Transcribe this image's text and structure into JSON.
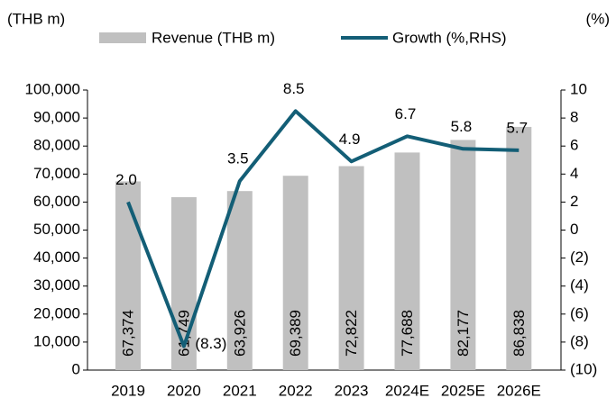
{
  "chart_data": {
    "type": "bar_line",
    "y_label": "(THB m)",
    "y2_label": "(%)",
    "categories": [
      "2019",
      "2020",
      "2021",
      "2022",
      "2023",
      "2024E",
      "2025E",
      "2026E"
    ],
    "series": [
      {
        "name": "Revenue (THB m)",
        "type": "bar",
        "color": "#c0c0c0",
        "values": [
          67374,
          61749,
          63926,
          69389,
          72822,
          77688,
          82177,
          86838
        ],
        "value_labels": [
          "67,374",
          "61,749",
          "63,926",
          "69,389",
          "72,822",
          "77,688",
          "82,177",
          "86,838"
        ]
      },
      {
        "name": "Growth (%,RHS)",
        "type": "line",
        "axis": "y2",
        "color": "#135e76",
        "values": [
          2.0,
          -8.3,
          3.5,
          8.5,
          4.9,
          6.7,
          5.8,
          5.7
        ],
        "value_labels": [
          "2.0",
          "(8.3)",
          "3.5",
          "8.5",
          "4.9",
          "6.7",
          "5.8",
          "5.7"
        ]
      }
    ],
    "ylim": [
      0,
      100000
    ],
    "yticks": [
      0,
      {
        "value": 10000,
        "label": "10,000"
      },
      {
        "value": 20000,
        "label": "20,000"
      },
      {
        "value": 30000,
        "label": "30,000"
      },
      {
        "value": 40000,
        "label": "40,000"
      },
      {
        "value": 50000,
        "label": "50,000"
      },
      {
        "value": 60000,
        "label": "60,000"
      },
      {
        "value": 70000,
        "label": "70,000"
      },
      {
        "value": 80000,
        "label": "80,000"
      },
      {
        "value": 90000,
        "label": "90,000"
      },
      {
        "value": 100000,
        "label": "100,000"
      }
    ],
    "y2lim": [
      -10,
      10
    ],
    "y2ticks": [
      {
        "value": -10,
        "label": "(10)"
      },
      {
        "value": -8,
        "label": "(8)"
      },
      {
        "value": -6,
        "label": "(6)"
      },
      {
        "value": -4,
        "label": "(4)"
      },
      {
        "value": -2,
        "label": "(2)"
      },
      0,
      2,
      4,
      6,
      8,
      10
    ],
    "legend": "top"
  }
}
